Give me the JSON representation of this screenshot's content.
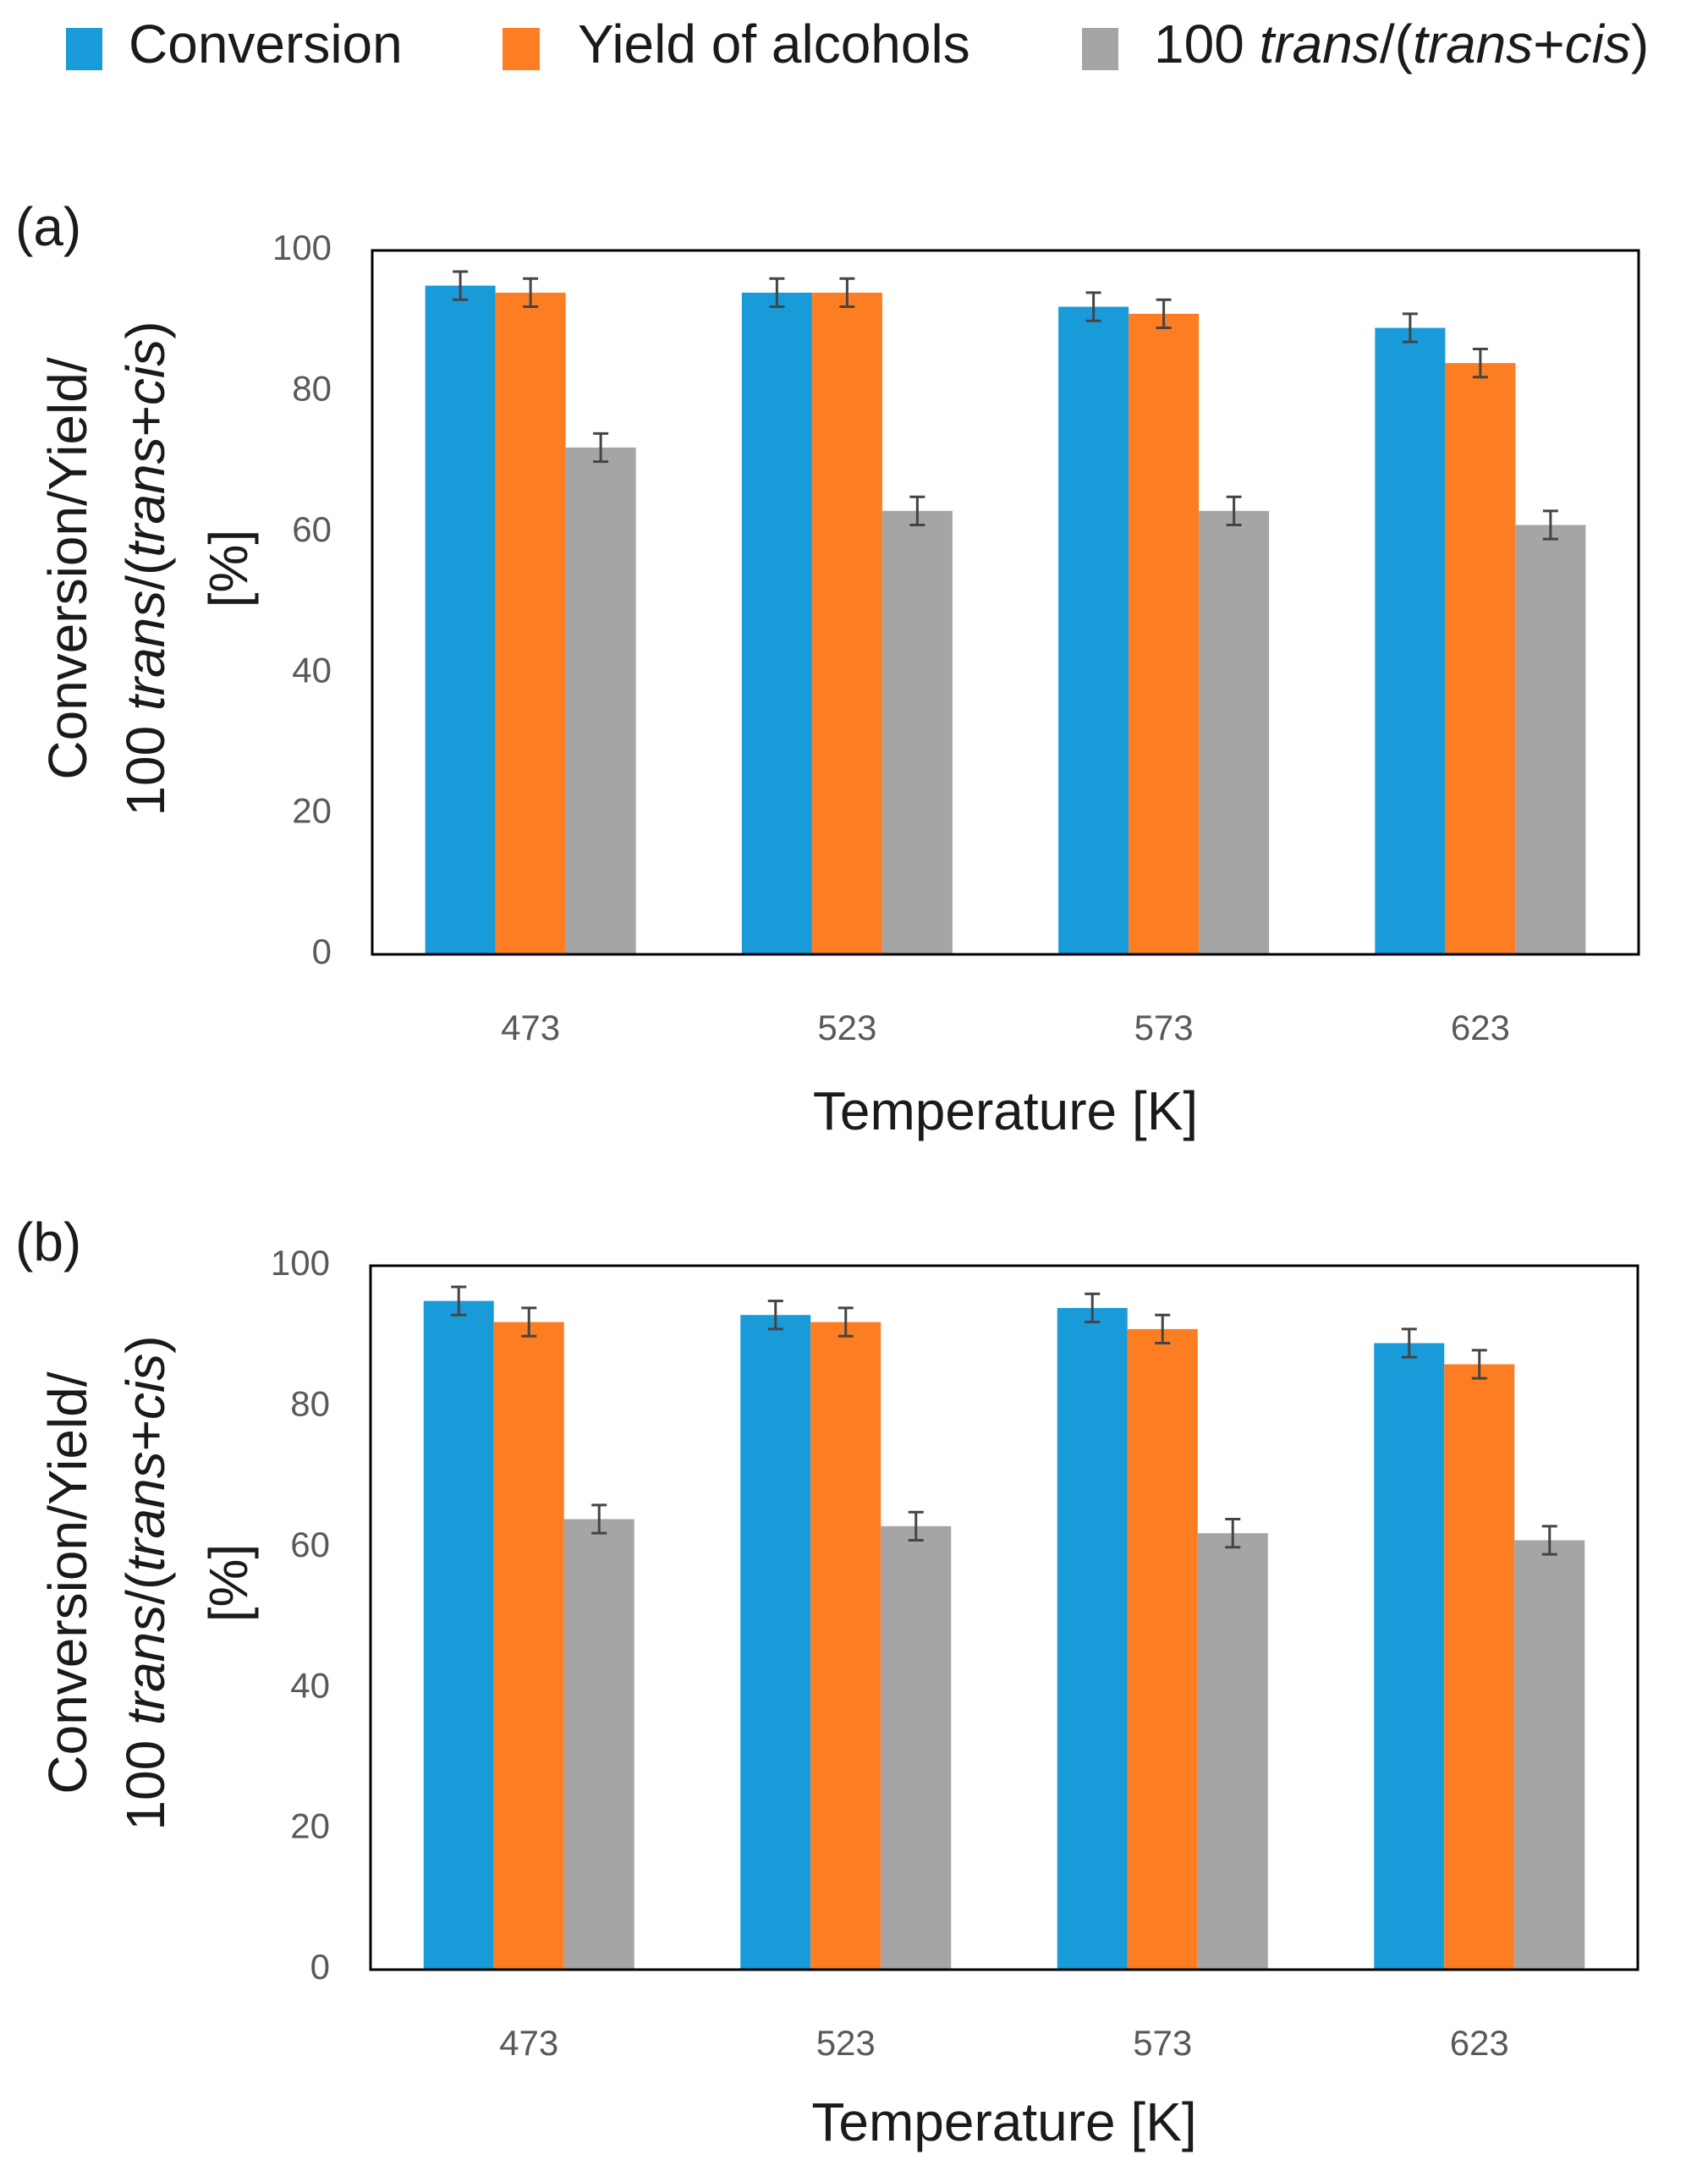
{
  "legend": {
    "items": [
      {
        "key": "conversion",
        "label": "Conversion",
        "color": "#199bd9"
      },
      {
        "key": "yield",
        "label": "Yield of alcohols",
        "color": "#fd7e22"
      },
      {
        "key": "ratio",
        "label_plain": "100 ",
        "label_italic_1": "trans",
        "label_mid": "/(",
        "label_italic_2": "trans",
        "label_mid2": "+",
        "label_italic_3": "cis",
        "label_end": ")",
        "color": "#a5a5a5"
      }
    ]
  },
  "colors": {
    "conversion": "#199bd9",
    "yield": "#fd7e22",
    "ratio": "#a5a5a5",
    "errorbar": "#444444",
    "axis": "#000000"
  },
  "chart_data": [
    {
      "type": "bar",
      "panel_label": "(a)",
      "categories": [
        "473",
        "523",
        "573",
        "623"
      ],
      "series": [
        {
          "name": "Conversion",
          "values": [
            95,
            94,
            92,
            89
          ],
          "error": [
            2,
            2,
            2,
            2
          ]
        },
        {
          "name": "Yield of alcohols",
          "values": [
            94,
            94,
            91,
            84
          ],
          "error": [
            2,
            2,
            2,
            2
          ]
        },
        {
          "name": "100 trans/(trans+cis)",
          "values": [
            72,
            63,
            63,
            61
          ],
          "error": [
            2,
            2,
            2,
            2
          ]
        }
      ],
      "yticks": [
        "0",
        "20",
        "40",
        "60",
        "80",
        "100"
      ],
      "ylim": [
        0,
        100
      ],
      "xlabel": "Temperature [K]",
      "ylabel": {
        "line1": "Conversion/Yield/",
        "line2_plain": "100 ",
        "line2_italic_1": "trans",
        "line2_mid": "/(",
        "line2_italic_2": "trans",
        "line2_mid2": "+",
        "line2_italic_3": "cis",
        "line2_end": ")",
        "line3": "[%]"
      }
    },
    {
      "type": "bar",
      "panel_label": "(b)",
      "categories": [
        "473",
        "523",
        "573",
        "623"
      ],
      "series": [
        {
          "name": "Conversion",
          "values": [
            95,
            93,
            94,
            89
          ],
          "error": [
            2,
            2,
            2,
            2
          ]
        },
        {
          "name": "Yield of alcohols",
          "values": [
            92,
            92,
            91,
            86
          ],
          "error": [
            2,
            2,
            2,
            2
          ]
        },
        {
          "name": "100 trans/(trans+cis)",
          "values": [
            64,
            63,
            62,
            61
          ],
          "error": [
            2,
            2,
            2,
            2
          ]
        }
      ],
      "yticks": [
        "0",
        "20",
        "40",
        "60",
        "80",
        "100"
      ],
      "ylim": [
        0,
        100
      ],
      "xlabel": "Temperature [K]",
      "ylabel": {
        "line1": "Conversion/Yield/",
        "line2_plain": "100 ",
        "line2_italic_1": "trans",
        "line2_mid": "/(",
        "line2_italic_2": "trans",
        "line2_mid2": "+",
        "line2_italic_3": "cis",
        "line2_end": ")",
        "line3": "[%]"
      }
    }
  ]
}
